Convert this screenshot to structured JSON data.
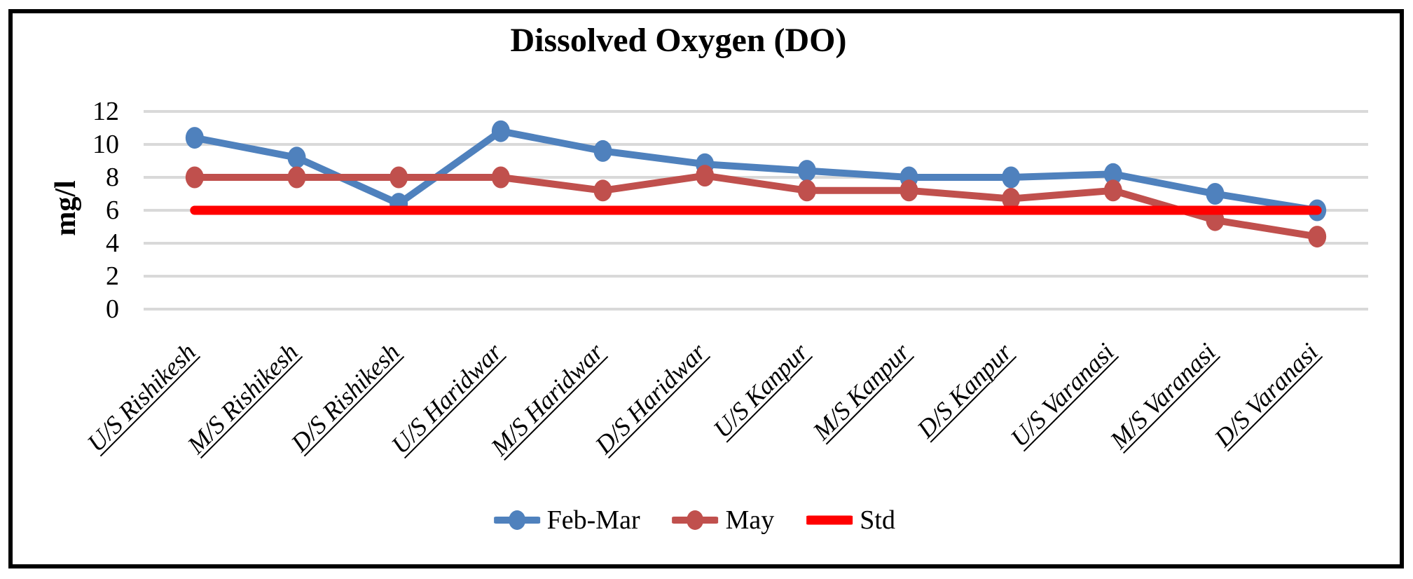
{
  "colors": {
    "background": "#FFFFFF",
    "border": "#000000",
    "gridline": "#D9D9D9",
    "text": "#000000",
    "feb_mar": "#4F81BD",
    "may": "#C0504D",
    "std": "#FF0000"
  },
  "chart_data": {
    "type": "line",
    "title": "Dissolved Oxygen (DO)",
    "xlabel": "",
    "ylabel": "mg/l",
    "ylim": [
      0,
      12
    ],
    "yticks": [
      0,
      2,
      4,
      6,
      8,
      10,
      12
    ],
    "grid": true,
    "legend_position": "bottom",
    "categories": [
      "U/S Rishikesh",
      "M/S Rishikesh",
      "D/S Rishikesh",
      "U/S Haridwar",
      "M/S Haridwar",
      "D/S Haridwar",
      "U/S Kanpur",
      "M/S Kanpur",
      "D/S Kanpur",
      "U/S Varanasi",
      "M/S Varanasi",
      "D/S Varanasi"
    ],
    "series": [
      {
        "name": "Feb-Mar",
        "color": "#4F81BD",
        "marker": "circle",
        "line_width": 10,
        "values": [
          10.4,
          9.2,
          6.4,
          10.8,
          9.6,
          8.8,
          8.4,
          8.0,
          8.0,
          8.2,
          7.0,
          6.0
        ]
      },
      {
        "name": "May",
        "color": "#C0504D",
        "marker": "circle",
        "line_width": 10,
        "values": [
          8.0,
          8.0,
          8.0,
          8.0,
          7.2,
          8.1,
          7.2,
          7.2,
          6.7,
          7.2,
          5.4,
          4.4
        ]
      },
      {
        "name": "Std",
        "color": "#FF0000",
        "marker": "none",
        "line_width": 13,
        "values": [
          6,
          6,
          6,
          6,
          6,
          6,
          6,
          6,
          6,
          6,
          6,
          6
        ]
      }
    ]
  }
}
